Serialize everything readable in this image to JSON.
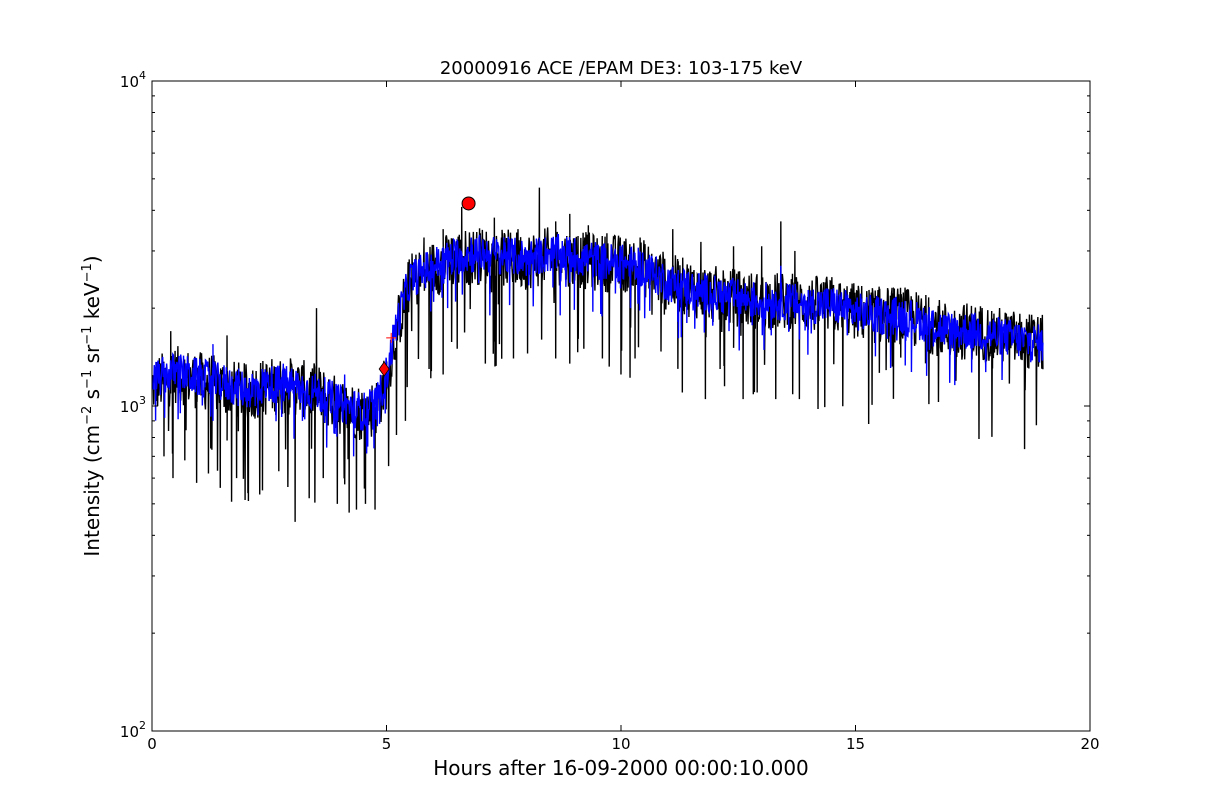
{
  "chart_data": {
    "type": "line",
    "title": "20000916 ACE /EPAM DE3: 103-175 keV",
    "xlabel": "Hours after 16-09-2000 00:00:10.000",
    "ylabel_main": "Intensity (cm",
    "ylabel_parts": [
      "Intensity (cm",
      "−2",
      " s",
      "−1",
      " sr",
      "−1",
      " keV",
      "−1",
      ")"
    ],
    "xlim": [
      0,
      20
    ],
    "ylim": [
      100,
      10000
    ],
    "yscale": "log",
    "grid": false,
    "xticks": [
      0,
      5,
      10,
      15,
      20
    ],
    "xtick_labels": [
      "0",
      "5",
      "10",
      "15",
      "20"
    ],
    "yticks": [
      100,
      1000,
      10000
    ],
    "ytick_labels": [
      {
        "base": "10",
        "exp": "2"
      },
      {
        "base": "10",
        "exp": "3"
      },
      {
        "base": "10",
        "exp": "4"
      }
    ],
    "series": [
      {
        "color": "#000000",
        "style": "raw",
        "x": [
          0.0,
          0.5,
          1.0,
          1.5,
          2.0,
          2.5,
          3.0,
          3.5,
          4.0,
          4.5,
          4.8,
          5.0,
          5.2,
          5.5,
          6.0,
          6.5,
          7.0,
          7.5,
          8.0,
          8.5,
          9.0,
          9.5,
          10.0,
          10.5,
          11.0,
          11.5,
          12.0,
          12.5,
          13.0,
          13.5,
          14.0,
          14.5,
          15.0,
          15.5,
          16.0,
          16.5,
          17.0,
          17.5,
          18.0,
          18.5,
          19.0
        ],
        "y": [
          1150,
          1250,
          1200,
          1150,
          1100,
          1150,
          1150,
          1100,
          1000,
          950,
          1000,
          1200,
          1700,
          2400,
          2650,
          2850,
          2900,
          2850,
          2800,
          2900,
          2850,
          2750,
          2750,
          2650,
          2400,
          2300,
          2200,
          2150,
          2100,
          2100,
          2050,
          2050,
          1950,
          1900,
          1900,
          1800,
          1700,
          1700,
          1650,
          1600,
          1550
        ],
        "dips": [
          [
            0.25,
            700
          ],
          [
            0.45,
            600
          ],
          [
            0.7,
            680
          ],
          [
            0.95,
            580
          ],
          [
            1.2,
            620
          ],
          [
            1.45,
            560
          ],
          [
            1.8,
            600
          ],
          [
            2.05,
            510
          ],
          [
            2.35,
            550
          ],
          [
            2.7,
            630
          ],
          [
            3.05,
            440
          ],
          [
            3.35,
            520
          ],
          [
            3.65,
            600
          ],
          [
            3.95,
            500
          ],
          [
            4.2,
            470
          ],
          [
            4.35,
            480
          ],
          [
            4.55,
            500
          ],
          [
            4.75,
            480
          ],
          [
            5.4,
            900
          ],
          [
            5.9,
            1300
          ],
          [
            6.2,
            1250
          ],
          [
            6.5,
            1500
          ],
          [
            7.1,
            1350
          ],
          [
            7.4,
            1550
          ],
          [
            7.7,
            1400
          ],
          [
            8.0,
            1450
          ],
          [
            8.3,
            1600
          ],
          [
            8.6,
            1400
          ],
          [
            8.9,
            1350
          ],
          [
            9.2,
            1500
          ],
          [
            9.6,
            1400
          ],
          [
            10.0,
            1250
          ],
          [
            10.3,
            1400
          ],
          [
            11.3,
            1100
          ],
          [
            11.8,
            1050
          ],
          [
            12.2,
            1150
          ],
          [
            12.6,
            1050
          ],
          [
            12.9,
            1100
          ],
          [
            13.3,
            1050
          ],
          [
            13.8,
            1050
          ]
        ],
        "spikes": [
          [
            5.8,
            3300
          ],
          [
            6.2,
            3500
          ],
          [
            6.6,
            4100
          ],
          [
            7.0,
            3400
          ],
          [
            7.3,
            3800
          ],
          [
            7.8,
            3500
          ],
          [
            8.25,
            4700
          ],
          [
            8.6,
            3700
          ],
          [
            8.9,
            3900
          ],
          [
            9.3,
            3600
          ],
          [
            9.7,
            3400
          ],
          [
            10.4,
            3300
          ],
          [
            11.1,
            3500
          ],
          [
            11.7,
            3200
          ],
          [
            12.4,
            3100
          ],
          [
            13.0,
            3100
          ],
          [
            13.4,
            3700
          ],
          [
            13.7,
            3000
          ],
          [
            0.4,
            1700
          ],
          [
            1.6,
            1650
          ],
          [
            3.5,
            2000
          ]
        ]
      },
      {
        "color": "#0000ff",
        "style": "smoothed",
        "x": [
          0.0,
          0.5,
          1.0,
          1.5,
          2.0,
          2.5,
          3.0,
          3.5,
          4.0,
          4.5,
          4.8,
          5.0,
          5.2,
          5.5,
          6.0,
          6.5,
          7.0,
          7.5,
          8.0,
          8.5,
          9.0,
          9.5,
          10.0,
          10.5,
          11.0,
          11.5,
          12.0,
          12.5,
          13.0,
          13.5,
          14.0,
          14.5,
          15.0,
          15.5,
          16.0,
          16.5,
          17.0,
          17.5,
          18.0,
          18.5,
          19.0
        ],
        "y": [
          1200,
          1280,
          1220,
          1180,
          1120,
          1170,
          1160,
          1100,
          1020,
          960,
          1020,
          1250,
          1750,
          2450,
          2700,
          2900,
          2950,
          2900,
          2850,
          2950,
          2900,
          2800,
          2750,
          2650,
          2400,
          2300,
          2200,
          2150,
          2100,
          2100,
          2050,
          2050,
          1950,
          1900,
          1900,
          1800,
          1700,
          1700,
          1650,
          1600,
          1550
        ],
        "dips": [
          [
            0.6,
            950
          ],
          [
            1.3,
            900
          ],
          [
            2.2,
            1000
          ],
          [
            3.2,
            900
          ],
          [
            3.9,
            820
          ],
          [
            4.3,
            700
          ],
          [
            4.6,
            750
          ],
          [
            6.3,
            2000
          ],
          [
            7.2,
            1900
          ],
          [
            8.7,
            1900
          ],
          [
            9.4,
            1950
          ],
          [
            10.2,
            2000
          ],
          [
            11.4,
            1800
          ],
          [
            12.3,
            1700
          ],
          [
            13.2,
            1650
          ],
          [
            13.8,
            1600
          ]
        ],
        "spikes": [
          [
            1.3,
            1550
          ],
          [
            2.8,
            1350
          ],
          [
            4.1,
            1250
          ],
          [
            6.8,
            3300
          ],
          [
            7.5,
            3300
          ],
          [
            9.0,
            3200
          ],
          [
            13.4,
            2700
          ]
        ]
      }
    ],
    "markers": [
      {
        "shape": "circle",
        "x": 6.75,
        "y": 4200,
        "color": "#ff0000"
      },
      {
        "shape": "diamond",
        "x": 4.95,
        "y": 1300,
        "color": "#ff0000"
      },
      {
        "shape": "plus",
        "x": 5.1,
        "y": 1620,
        "color": "#ff0000"
      }
    ]
  }
}
